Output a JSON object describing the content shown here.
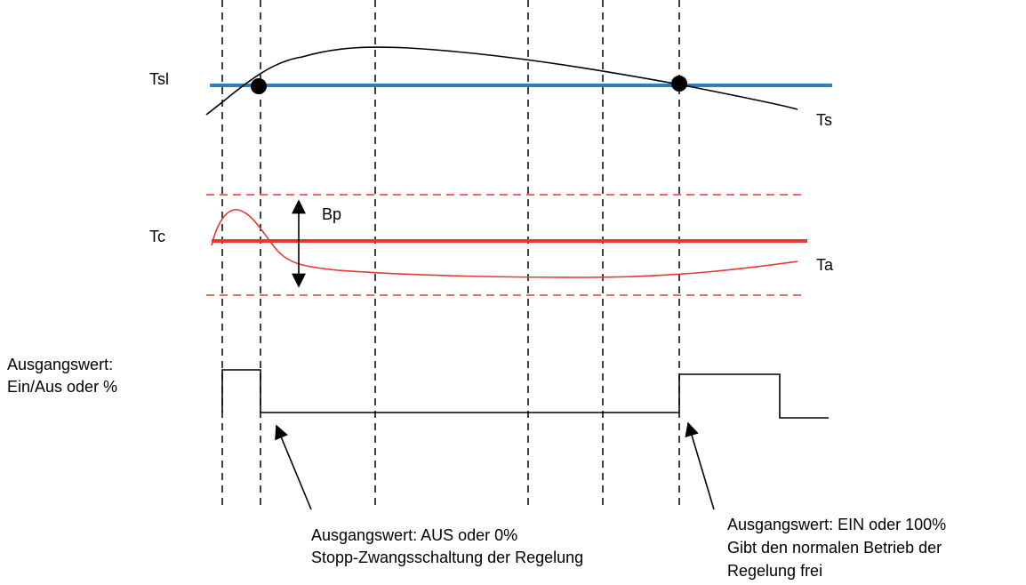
{
  "labels": {
    "tsl": "Tsl",
    "ts": "Ts",
    "tc": "Tc",
    "bp": "Bp",
    "ta": "Ta"
  },
  "output_label": {
    "line1": "Ausgangswert:",
    "line2": "Ein/Aus oder %"
  },
  "annotation_off": {
    "line1": "Ausgangswert: AUS oder 0%",
    "line2": "Stopp-Zwangsschaltung der Regelung"
  },
  "annotation_on": {
    "line1": "Ausgangswert: EIN oder 100%",
    "line2": "Gibt den normalen Betrieb der",
    "line3": "Regelung frei"
  },
  "colors": {
    "tsl_line": "#2d7fc1",
    "tc_line": "#e53935",
    "curves": "#000000"
  }
}
